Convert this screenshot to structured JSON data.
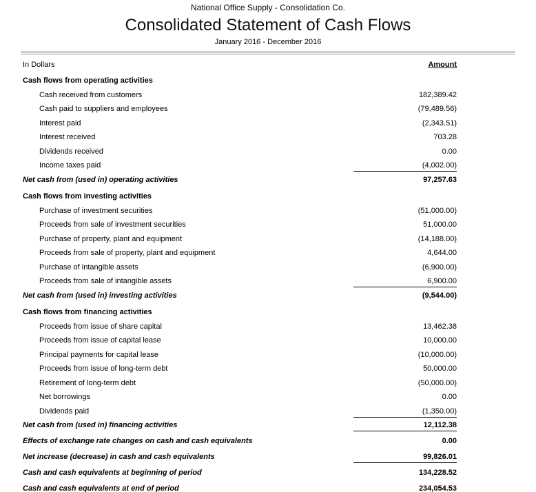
{
  "header": {
    "company": "National Office Supply - Consolidation Co.",
    "title": "Consolidated Statement of Cash Flows",
    "period": "January 2016 - December 2016"
  },
  "columns": {
    "left": "In Dollars",
    "right": "Amount"
  },
  "rows": [
    {
      "type": "section",
      "label": "Cash flows from operating activities",
      "amount": ""
    },
    {
      "type": "item",
      "label": "Cash received from customers",
      "amount": "182,389.42"
    },
    {
      "type": "item",
      "label": "Cash paid to suppliers and employees",
      "amount": "(79,489.56)"
    },
    {
      "type": "item",
      "label": "Interest paid",
      "amount": "(2,343.51)"
    },
    {
      "type": "item",
      "label": "Interest received",
      "amount": "703.28"
    },
    {
      "type": "item",
      "label": "Dividends received",
      "amount": "0.00"
    },
    {
      "type": "item",
      "label": "Income taxes paid",
      "amount": "(4,002.00)",
      "underline_below": true
    },
    {
      "type": "total",
      "label": "Net cash from (used in) operating activities",
      "amount": "97,257.63"
    },
    {
      "type": "section",
      "label": "Cash flows from investing activities",
      "amount": ""
    },
    {
      "type": "item",
      "label": "Purchase of investment securities",
      "amount": "(51,000.00)"
    },
    {
      "type": "item",
      "label": "Proceeds from sale of investment securities",
      "amount": "51,000.00"
    },
    {
      "type": "item",
      "label": "Purchase of property, plant and equipment",
      "amount": "(14,188.00)"
    },
    {
      "type": "item",
      "label": "Proceeds from sale of property, plant and equipment",
      "amount": "4,644.00"
    },
    {
      "type": "item",
      "label": "Purchase of intangible assets",
      "amount": "(6,900.00)"
    },
    {
      "type": "item",
      "label": "Proceeds from sale of intangible assets",
      "amount": "6,900.00",
      "underline_below": true
    },
    {
      "type": "total",
      "label": "Net cash from (used in) investing activities",
      "amount": "(9,544.00)"
    },
    {
      "type": "section",
      "label": "Cash flows from financing activities",
      "amount": ""
    },
    {
      "type": "item",
      "label": "Proceeds from issue of share capital",
      "amount": "13,462.38"
    },
    {
      "type": "item",
      "label": "Proceeds from issue of capital lease",
      "amount": "10,000.00"
    },
    {
      "type": "item",
      "label": "Principal payments for capital lease",
      "amount": "(10,000.00)"
    },
    {
      "type": "item",
      "label": "Proceeds from issue of long-term debt",
      "amount": "50,000.00"
    },
    {
      "type": "item",
      "label": "Retirement of long-term debt",
      "amount": "(50,000.00)"
    },
    {
      "type": "item",
      "label": "Net borrowings",
      "amount": "0.00"
    },
    {
      "type": "item",
      "label": "Dividends paid",
      "amount": "(1,350.00)",
      "underline_below": true
    },
    {
      "type": "total",
      "label": "Net cash from (used in) financing activities",
      "amount": "12,112.38",
      "underline_below": true
    },
    {
      "type": "summary",
      "label": "Effects of exchange rate changes on cash and cash equivalents",
      "amount": "0.00"
    },
    {
      "type": "summary",
      "label": "Net increase (decrease) in cash and cash equivalents",
      "amount": "99,826.01",
      "underline_below": true
    },
    {
      "type": "summary",
      "label": "Cash and cash equivalents at beginning of period",
      "amount": "134,228.52"
    },
    {
      "type": "summary",
      "label": "Cash and cash equivalents at end of period",
      "amount": "234,054.53",
      "underline_below": true
    }
  ],
  "colors": {
    "background": "#ffffff",
    "text": "#000000",
    "divider_top": "#4d4d4d",
    "divider_bottom": "#9d9d9d",
    "amount_underline": "#000000"
  }
}
